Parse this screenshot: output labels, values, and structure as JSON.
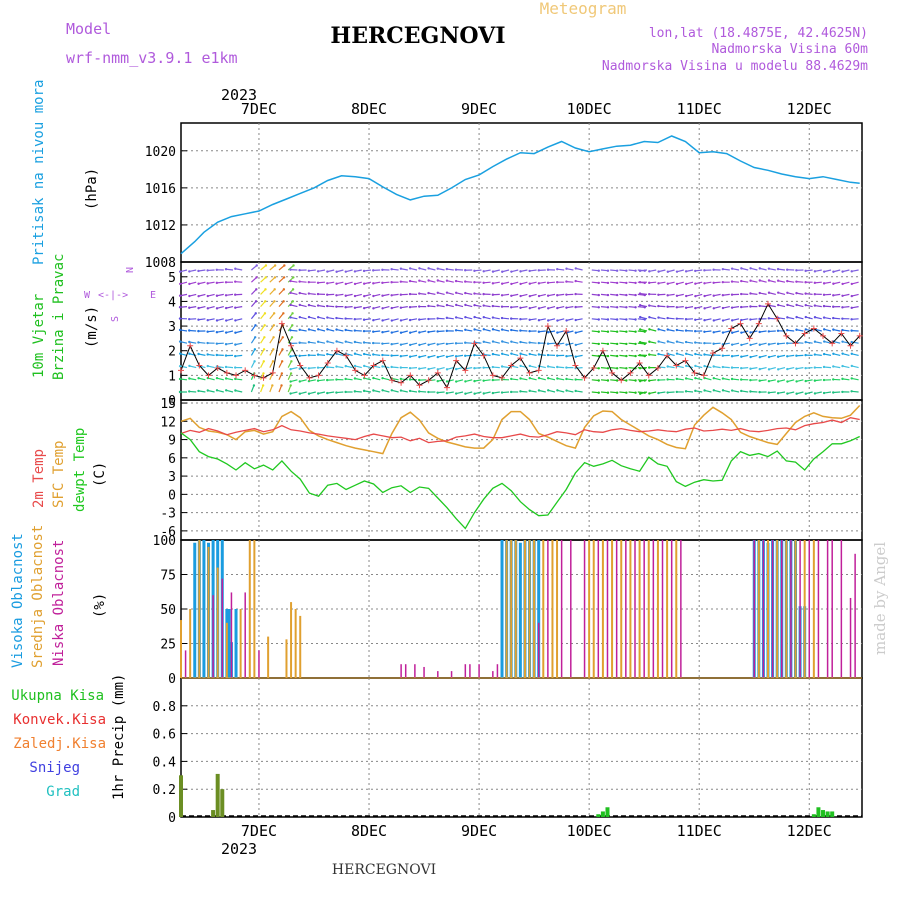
{
  "header": {
    "model_label": "Model",
    "model_name": "wrf-nmm_v3.9.1 e1km",
    "station": "HERCEGNOVI",
    "product": "Meteogram",
    "coords": "lon,lat (18.4875E, 42.4625N)",
    "elevation": "Nadmorska Visina 60m",
    "model_elevation": "Nadmorska Visina u modelu 88.4629m",
    "watermark": "made by Angel",
    "footer_station": "HERCEGNOVI"
  },
  "time_axis": {
    "year": "2023",
    "days": [
      "7DEC",
      "8DEC",
      "9DEC",
      "10DEC",
      "11DEC",
      "12DEC"
    ],
    "start_hour": 0,
    "end_hour": 144
  },
  "panels": {
    "pressure": {
      "label_main": "Pritisak na nivou mora",
      "unit": "(hPa)",
      "ticks": [
        "1008",
        "1012",
        "1016",
        "1020"
      ]
    },
    "wind": {
      "label_line1": "10m Vjetar",
      "label_line2": "Brzina i Pravac",
      "unit": "(m/s)",
      "ticks": [
        "0",
        "1",
        "2",
        "3",
        "4",
        "5"
      ],
      "compass_n": "N",
      "compass_w": "W",
      "compass_e": "E",
      "compass_s": "S",
      "compass_arrows": "<-|->"
    },
    "temp": {
      "label_2m": "2m Temp",
      "label_sfc": "SFC Temp",
      "label_dew": "dewpt Temp",
      "unit": "(C)",
      "ticks": [
        "-6",
        "-3",
        "0",
        "3",
        "6",
        "9",
        "12",
        "15"
      ]
    },
    "cloud": {
      "label_high": "Visoka Oblacnost",
      "label_mid": "Srednja Oblacnost",
      "label_low": "Niska Oblacnost",
      "unit": "(%)",
      "ticks": [
        "0",
        "25",
        "50",
        "75",
        "100"
      ]
    },
    "precip": {
      "legend": [
        "Ukupna Kisa",
        "Konvek.Kisa",
        "Zaledj.Kisa",
        "Snijeg",
        "Grad"
      ],
      "unit": "1hr Precip (mm)",
      "ticks": [
        "0",
        "0.2",
        "0.4",
        "0.6",
        "0.8"
      ]
    }
  },
  "colors": {
    "model": "#b05adc",
    "product": "#f0c878",
    "pressure": "#1aa0e0",
    "wind_label": "#20c020",
    "temp_2m": "#e84a4a",
    "temp_sfc": "#e0a030",
    "temp_dew": "#20c820",
    "cloud_high": "#1a9ce0",
    "cloud_mid": "#e0a030",
    "cloud_low": "#c0209a",
    "precip_total": "#20c020",
    "precip_conv": "#e83030",
    "precip_frz": "#f08030",
    "precip_snow": "#4040e0",
    "precip_hail": "#20c0c0",
    "watermark": "#cccccc"
  },
  "chart_data": {
    "type": "line",
    "x_unit": "hours from 7DEC 00",
    "pressure_hpa": {
      "x": [
        -5,
        -2,
        0,
        3,
        6,
        9,
        12,
        15,
        18,
        21,
        24,
        27,
        30,
        33,
        36,
        39,
        42,
        45,
        48,
        51,
        54,
        57,
        60,
        63,
        66,
        69,
        72,
        75,
        78,
        81,
        84,
        87,
        90,
        93,
        96,
        99,
        102,
        105,
        108,
        111,
        114,
        117,
        120,
        123,
        126,
        129,
        132,
        135,
        138,
        141,
        143
      ],
      "y": [
        1008.9,
        1010.2,
        1011.2,
        1012.3,
        1012.9,
        1013.2,
        1013.5,
        1014.2,
        1014.8,
        1015.4,
        1016.0,
        1016.8,
        1017.3,
        1017.2,
        1017.0,
        1016.1,
        1015.3,
        1014.7,
        1015.1,
        1015.2,
        1016.0,
        1016.9,
        1017.4,
        1018.3,
        1019.1,
        1019.8,
        1019.7,
        1020.4,
        1021.0,
        1020.3,
        1019.9,
        1020.2,
        1020.5,
        1020.6,
        1021.0,
        1020.9,
        1021.6,
        1021.0,
        1019.8,
        1019.9,
        1019.7,
        1018.9,
        1018.2,
        1017.9,
        1017.5,
        1017.2,
        1017.0,
        1017.2,
        1016.9,
        1016.6,
        1016.5
      ],
      "ylim": [
        1008,
        1023
      ]
    },
    "wind_speed_ms": {
      "x": [
        -5,
        -3,
        -1,
        1,
        3,
        5,
        7,
        9,
        11,
        13,
        15,
        17,
        19,
        21,
        23,
        25,
        27,
        29,
        31,
        33,
        35,
        37,
        39,
        41,
        43,
        45,
        47,
        49,
        51,
        53,
        55,
        57,
        59,
        61,
        63,
        65,
        67,
        69,
        71,
        73,
        75,
        77,
        79,
        81,
        83,
        85,
        87,
        89,
        91,
        93,
        95,
        97,
        99,
        101,
        103,
        105,
        107,
        109,
        111,
        113,
        115,
        117,
        119,
        121,
        123,
        125,
        127,
        129,
        131,
        133,
        135,
        137,
        139,
        141,
        143
      ],
      "y": [
        1.2,
        2.2,
        1.4,
        1.0,
        1.3,
        1.1,
        1.0,
        1.2,
        1.0,
        0.9,
        1.1,
        3.1,
        2.2,
        1.4,
        0.9,
        1.0,
        1.5,
        2.0,
        1.8,
        1.2,
        1.0,
        1.4,
        1.6,
        0.8,
        0.7,
        1.0,
        0.6,
        0.8,
        1.1,
        0.5,
        1.6,
        1.2,
        2.3,
        1.8,
        1.0,
        0.9,
        1.4,
        1.7,
        1.1,
        1.2,
        3.0,
        2.2,
        2.8,
        1.4,
        0.9,
        1.3,
        2.0,
        1.1,
        0.8,
        1.1,
        1.5,
        1.0,
        1.3,
        1.8,
        1.4,
        1.6,
        1.1,
        1.0,
        1.9,
        2.1,
        2.9,
        3.1,
        2.5,
        3.1,
        3.9,
        3.3,
        2.6,
        2.3,
        2.7,
        2.9,
        2.6,
        2.3,
        2.7,
        2.2,
        2.6
      ],
      "ylim": [
        0,
        5.6
      ]
    },
    "temperature_c": {
      "x": [
        -5,
        -3,
        -1,
        1,
        3,
        5,
        7,
        9,
        11,
        13,
        15,
        17,
        19,
        21,
        23,
        25,
        27,
        29,
        31,
        33,
        35,
        37,
        39,
        41,
        43,
        45,
        47,
        49,
        51,
        53,
        55,
        57,
        59,
        61,
        63,
        65,
        67,
        69,
        71,
        73,
        75,
        77,
        79,
        81,
        83,
        85,
        87,
        89,
        91,
        93,
        95,
        97,
        99,
        101,
        103,
        105,
        107,
        109,
        111,
        113,
        115,
        117,
        119,
        121,
        123,
        125,
        127,
        129,
        131,
        133,
        135,
        137,
        139,
        141,
        143
      ],
      "t2m": [
        10.0,
        10.5,
        10.2,
        10.8,
        10.4,
        9.8,
        10.2,
        10.5,
        10.8,
        10.3,
        10.6,
        11.3,
        10.6,
        10.4,
        10.1,
        9.9,
        9.6,
        9.4,
        9.2,
        9.0,
        9.5,
        9.9,
        9.6,
        9.3,
        9.4,
        8.8,
        9.2,
        8.5,
        8.7,
        8.8,
        9.4,
        9.6,
        9.9,
        9.5,
        9.3,
        9.3,
        9.6,
        9.9,
        9.5,
        9.4,
        9.8,
        10.3,
        10.1,
        9.8,
        10.6,
        10.3,
        10.2,
        10.6,
        10.8,
        10.5,
        10.3,
        10.4,
        10.6,
        10.4,
        10.3,
        10.7,
        10.9,
        10.4,
        10.5,
        10.7,
        10.5,
        10.8,
        10.4,
        10.3,
        10.5,
        10.8,
        10.9,
        10.6,
        11.3,
        11.6,
        11.8,
        12.2,
        11.8,
        12.6,
        12.3
      ],
      "tsfc": [
        12.0,
        12.5,
        11.0,
        10.4,
        10.2,
        9.8,
        9.0,
        10.3,
        10.5,
        9.9,
        10.3,
        12.8,
        13.6,
        12.6,
        10.5,
        9.6,
        9.0,
        8.5,
        8.0,
        7.6,
        7.3,
        7.0,
        6.7,
        10.0,
        12.6,
        13.5,
        12.2,
        10.1,
        9.2,
        8.6,
        8.2,
        7.8,
        7.6,
        7.6,
        9.0,
        12.3,
        13.6,
        13.6,
        12.3,
        10.0,
        9.4,
        8.7,
        8.0,
        7.6,
        11.0,
        12.9,
        13.7,
        13.6,
        12.3,
        11.4,
        10.5,
        9.6,
        9.0,
        8.2,
        7.7,
        7.5,
        11.4,
        13.0,
        14.3,
        13.4,
        12.3,
        10.2,
        9.5,
        9.0,
        8.5,
        8.2,
        10.0,
        11.8,
        12.8,
        13.4,
        12.8,
        12.6,
        12.5,
        13.0,
        14.6
      ],
      "tdew": [
        10.1,
        9.0,
        7.0,
        6.2,
        5.8,
        5.0,
        4.0,
        5.2,
        4.2,
        4.8,
        4.0,
        5.5,
        3.8,
        2.5,
        0.2,
        -0.3,
        1.5,
        1.8,
        0.8,
        1.5,
        2.2,
        1.7,
        0.3,
        1.1,
        1.4,
        0.3,
        1.2,
        1.0,
        -0.6,
        -2.2,
        -4.0,
        -5.6,
        -3.0,
        -0.8,
        1.0,
        1.8,
        0.6,
        -1.2,
        -2.5,
        -3.5,
        -3.4,
        -1.3,
        0.8,
        3.5,
        5.2,
        4.6,
        5.0,
        5.6,
        4.7,
        4.2,
        3.8,
        6.1,
        5.0,
        4.6,
        2.1,
        1.3,
        2.0,
        2.4,
        2.2,
        2.3,
        5.5,
        7.0,
        6.4,
        6.7,
        6.2,
        7.1,
        5.5,
        5.3,
        4.0,
        5.8,
        7.0,
        8.3,
        8.3,
        8.8,
        9.5
      ],
      "ylim": [
        -7.5,
        15.5
      ]
    },
    "cloud_cover_pct": {
      "high": {
        "x": [
          -2,
          -1,
          0,
          1,
          2,
          3,
          4,
          5,
          5.5,
          6,
          7,
          65,
          66,
          67,
          68,
          69,
          70,
          71,
          72,
          73,
          120,
          121,
          122,
          123,
          124,
          125,
          126,
          127,
          128,
          129,
          130,
          131
        ],
        "y": [
          98,
          100,
          100,
          98,
          100,
          100,
          100,
          50,
          50,
          26,
          50,
          100,
          100,
          100,
          100,
          98,
          100,
          100,
          100,
          100,
          100,
          100,
          100,
          98,
          100,
          100,
          100,
          100,
          100,
          100,
          52,
          52
        ]
      },
      "mid": {
        "x": [
          -5,
          -3,
          -1,
          1,
          3,
          5,
          8,
          10,
          11,
          14,
          18,
          19,
          20,
          21,
          66,
          67,
          68,
          70,
          71,
          72,
          74,
          76,
          77,
          84,
          85,
          87,
          89,
          91,
          93,
          95,
          97,
          99,
          101,
          103,
          121,
          123,
          125,
          127,
          129,
          131,
          133
        ],
        "y": [
          42,
          50,
          100,
          95,
          80,
          40,
          50,
          100,
          100,
          30,
          28,
          55,
          50,
          45,
          100,
          100,
          100,
          100,
          100,
          100,
          100,
          100,
          100,
          100,
          100,
          100,
          100,
          100,
          100,
          100,
          100,
          100,
          100,
          100,
          100,
          100,
          100,
          100,
          100,
          100,
          100
        ]
      },
      "low": {
        "x": [
          -4,
          2,
          4,
          6,
          9,
          12,
          21,
          43,
          44,
          46,
          48,
          51,
          54,
          57,
          58,
          60,
          63,
          64,
          73,
          75,
          78,
          80,
          83,
          86,
          88,
          90,
          92,
          94,
          96,
          98,
          100,
          102,
          104,
          120,
          122,
          124,
          126,
          128,
          130,
          132,
          134,
          136,
          137,
          139,
          141,
          142
        ],
        "y": [
          20,
          60,
          72,
          62,
          62,
          20,
          0,
          10,
          10,
          10,
          8,
          5,
          5,
          10,
          10,
          10,
          5,
          10,
          40,
          100,
          100,
          100,
          100,
          100,
          100,
          100,
          100,
          100,
          100,
          100,
          100,
          100,
          100,
          100,
          100,
          100,
          100,
          100,
          100,
          100,
          100,
          100,
          100,
          100,
          58,
          90
        ]
      },
      "ylim": [
        0,
        100
      ]
    },
    "precip_mm": {
      "total": {
        "x": [
          -5,
          2,
          3,
          4,
          5,
          86,
          87,
          88,
          133,
          134,
          135,
          136,
          137
        ],
        "y": [
          0.3,
          0.05,
          0.31,
          0.2,
          0.0,
          0.02,
          0.04,
          0.07,
          0.02,
          0.07,
          0.05,
          0.04,
          0.04
        ]
      },
      "ylim": [
        0,
        1.0
      ]
    }
  }
}
